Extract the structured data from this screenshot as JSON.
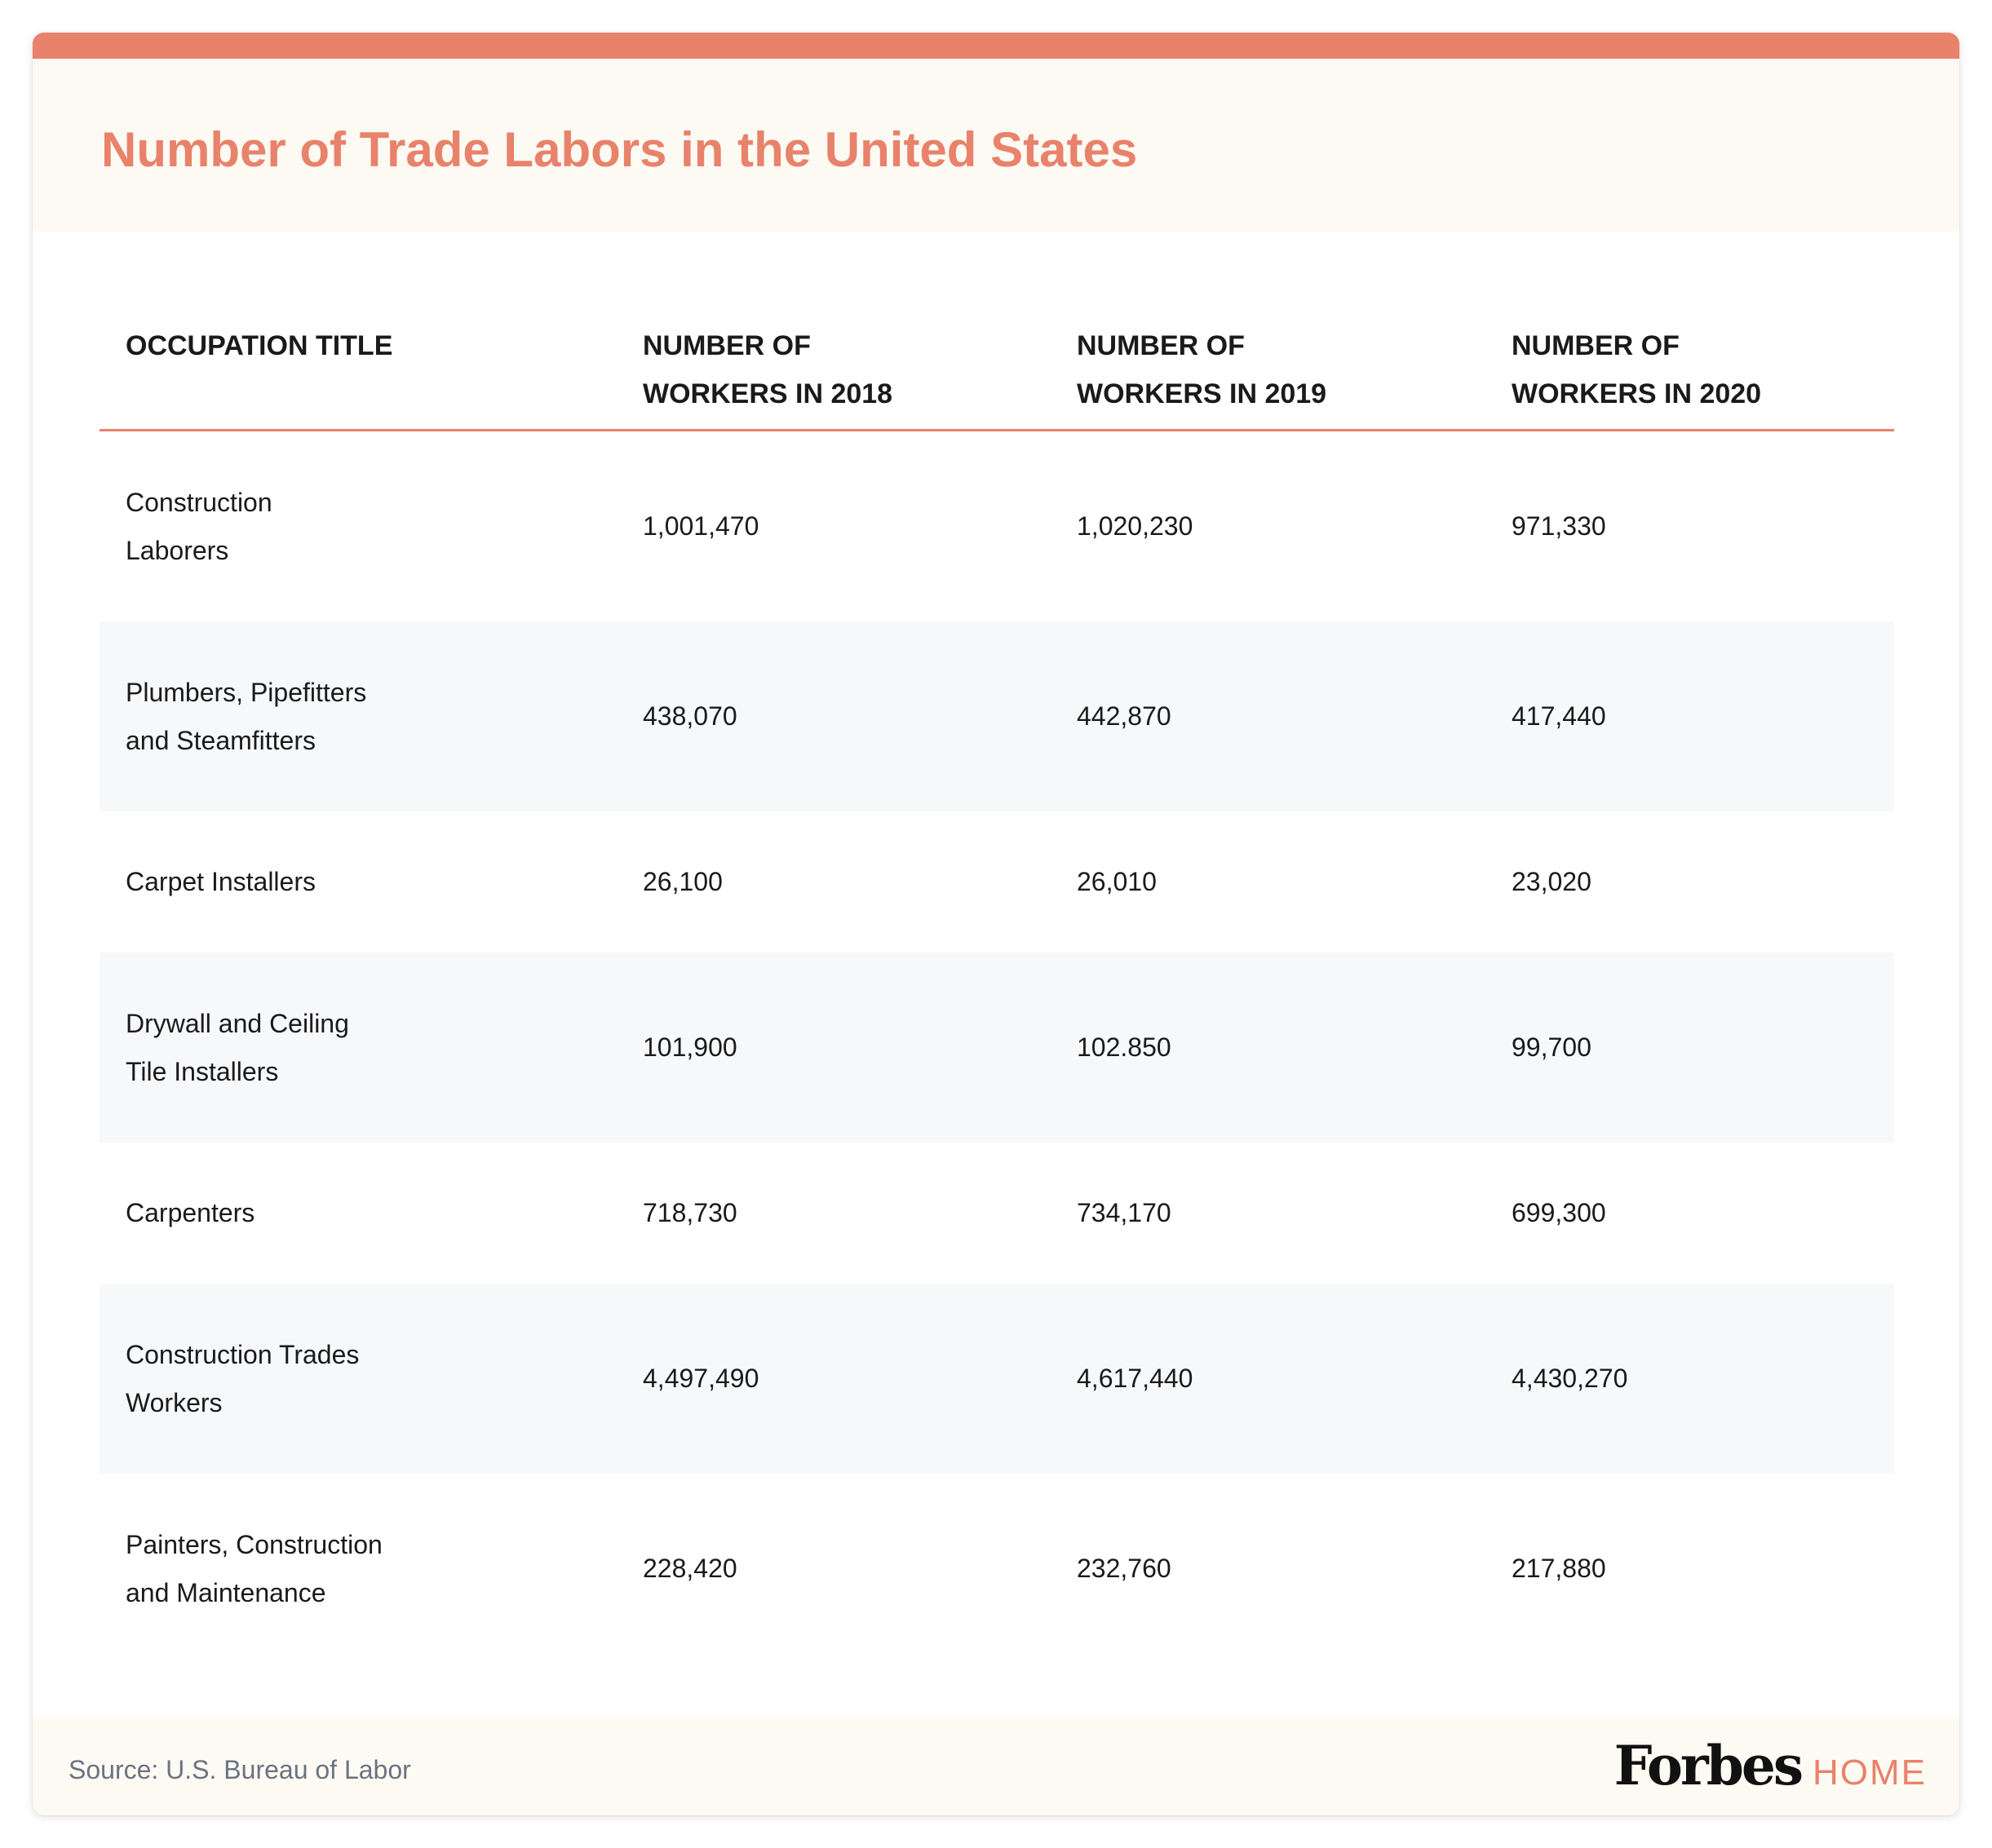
{
  "colors": {
    "accent": "#e8826b",
    "header_bg": "#fdfaf3",
    "source_text": "#6b7280",
    "row_shade": "#f7f8fa"
  },
  "header": {
    "title": "Number of Trade Labors in the United States"
  },
  "chart_data": {
    "type": "table",
    "title": "Number of Trade Labors in the United States",
    "columns": [
      [
        "OCCUPATION TITLE"
      ],
      [
        "NUMBER OF",
        "WORKERS IN 2018"
      ],
      [
        "NUMBER OF",
        "WORKERS IN 2019"
      ],
      [
        "NUMBER OF",
        "WORKERS IN 2020"
      ]
    ],
    "rows": [
      {
        "occupation": [
          "Construction",
          "Laborers"
        ],
        "y2018": "1,001,470",
        "y2019": "1,020,230",
        "y2020": "971,330"
      },
      {
        "occupation": [
          "Plumbers, Pipefitters",
          "and Steamfitters"
        ],
        "y2018": "438,070",
        "y2019": "442,870",
        "y2020": "417,440"
      },
      {
        "occupation": [
          "Carpet Installers"
        ],
        "y2018": "26,100",
        "y2019": "26,010",
        "y2020": "23,020"
      },
      {
        "occupation": [
          "Drywall and Ceiling",
          "Tile Installers"
        ],
        "y2018": "101,900",
        "y2019": "102.850",
        "y2020": "99,700"
      },
      {
        "occupation": [
          "Carpenters"
        ],
        "y2018": "718,730",
        "y2019": "734,170",
        "y2020": "699,300"
      },
      {
        "occupation": [
          "Construction Trades",
          "Workers"
        ],
        "y2018": "4,497,490",
        "y2019": "4,617,440",
        "y2020": "4,430,270"
      },
      {
        "occupation": [
          "Painters, Construction",
          "and Maintenance"
        ],
        "y2018": "228,420",
        "y2019": "232,760",
        "y2020": "217,880"
      }
    ]
  },
  "footer": {
    "source": "Source: U.S. Bureau of Labor",
    "logo_primary": "Forbes",
    "logo_secondary": "HOME"
  }
}
